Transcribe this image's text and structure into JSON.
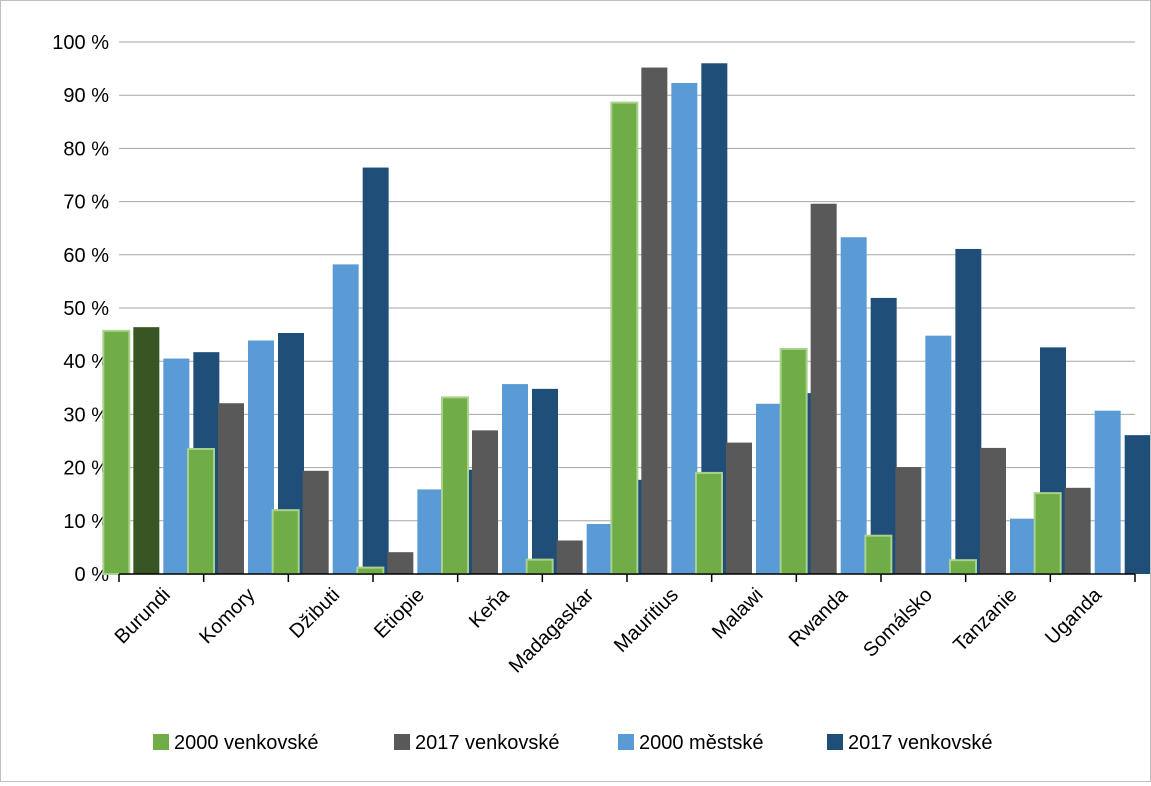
{
  "chart_data": {
    "type": "bar",
    "title": "",
    "xlabel": "",
    "ylabel": "",
    "ylim": [
      0,
      100
    ],
    "grid": "horizontal",
    "legend_position": "bottom",
    "yticks": [
      "0 %",
      "10 %",
      "20 %",
      "30 %",
      "40 %",
      "50 %",
      "60 %",
      "70 %",
      "80 %",
      "90 %",
      "100 %"
    ],
    "categories": [
      "Burundi",
      "Komory",
      "Džibuti",
      "Etiopie",
      "Keňa",
      "Madagaskar",
      "Mauritius",
      "Malawi",
      "Rwanda",
      "Somálsko",
      "Tanzanie",
      "Uganda"
    ],
    "series": [
      {
        "name": "2000 venkovské",
        "color": "#70ad47",
        "values": [
          45.7,
          23.5,
          12.0,
          1.2,
          33.2,
          2.7,
          88.6,
          19.0,
          42.3,
          7.2,
          2.6,
          15.2
        ]
      },
      {
        "name": "2017 venkovské",
        "color": "#595959",
        "values": [
          46.4,
          32.1,
          19.4,
          4.1,
          27.0,
          6.3,
          95.2,
          24.7,
          69.6,
          20.1,
          23.7,
          16.2
        ]
      },
      {
        "name": "2000 městské",
        "color": "#5b9bd5",
        "values": [
          40.5,
          43.9,
          58.2,
          15.9,
          35.7,
          9.4,
          92.3,
          32.0,
          63.3,
          44.8,
          10.4,
          30.7
        ]
      },
      {
        "name": "2017 venkovské",
        "color": "#1f4e79",
        "values": [
          41.7,
          45.3,
          76.4,
          19.6,
          34.8,
          17.7,
          96.0,
          34.0,
          51.9,
          61.1,
          42.6,
          26.1
        ]
      }
    ],
    "highlight": {
      "series": 1,
      "category": 0,
      "color": "#375623"
    }
  }
}
